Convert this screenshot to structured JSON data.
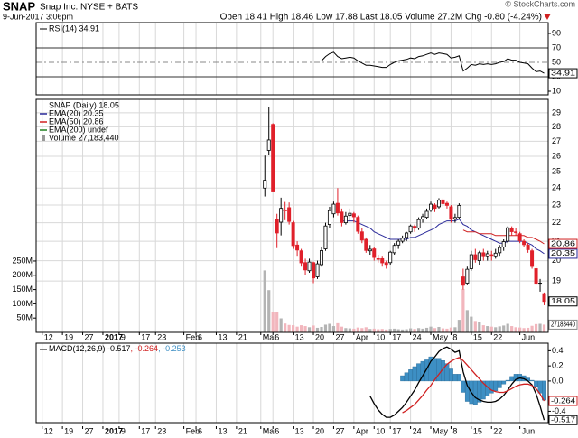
{
  "header": {
    "symbol": "SNAP",
    "name": "Snap Inc. NYSE + BATS",
    "timestamp": "9-Jun-2017 3:06pm",
    "quote": "Open 18.41  High 18.46  Low 17.88  Last 18.05  Volume 27.2M  Chg -0.80 (-4.24%)",
    "credit": "© StockCharts.com"
  },
  "chart_data": {
    "type": "candlestick",
    "xlim": [
      -56.5,
      70
    ],
    "xticks": [
      {
        "value": -55,
        "label": "12"
      },
      {
        "value": -50,
        "label": "19"
      },
      {
        "value": -45,
        "label": "27"
      },
      {
        "value": -40,
        "label": "2017"
      },
      {
        "value": -36,
        "label": "9"
      },
      {
        "value": -31,
        "label": "17"
      },
      {
        "value": -27,
        "label": "23"
      },
      {
        "value": -20,
        "label": "Feb"
      },
      {
        "value": -17,
        "label": "6"
      },
      {
        "value": -12,
        "label": "13"
      },
      {
        "value": -7,
        "label": "21"
      },
      {
        "value": -1,
        "label": "Mar"
      },
      {
        "value": 2,
        "label": "6"
      },
      {
        "value": 7,
        "label": "13"
      },
      {
        "value": 12,
        "label": "20"
      },
      {
        "value": 17,
        "label": "27"
      },
      {
        "value": 22,
        "label": "Apr"
      },
      {
        "value": 27,
        "label": "10"
      },
      {
        "value": 31,
        "label": "17"
      },
      {
        "value": 36,
        "label": "24"
      },
      {
        "value": 41,
        "label": "May"
      },
      {
        "value": 46,
        "label": "8"
      },
      {
        "value": 51,
        "label": "15"
      },
      {
        "value": 56,
        "label": "22"
      },
      {
        "value": 63,
        "label": "Jun"
      }
    ],
    "grid": true,
    "rsi": {
      "label": "RSI(14) 34.91",
      "last_label": "34.91",
      "color": "#000000",
      "ylim": [
        5,
        105
      ],
      "yticks": [
        10,
        30,
        50,
        70,
        90
      ],
      "values": [
        null,
        null,
        null,
        null,
        null,
        null,
        null,
        null,
        null,
        null,
        null,
        null,
        null,
        null,
        52,
        58,
        62,
        64,
        58,
        55,
        56,
        57,
        56,
        52,
        49,
        46,
        46,
        45,
        44,
        43,
        43,
        47,
        50,
        52,
        53,
        54,
        56,
        55,
        58,
        59,
        61,
        63,
        61,
        63,
        62,
        61,
        56,
        57,
        59,
        38,
        42,
        47,
        46,
        48,
        47,
        48,
        47,
        48,
        50,
        51,
        55,
        53,
        53,
        50,
        49,
        48,
        42,
        37,
        38,
        34.91
      ]
    },
    "price": {
      "legend": "SNAP (Daily) 18.05",
      "last_label": "18.05",
      "log": true,
      "ylim": [
        16.7,
        30
      ],
      "yticks": [
        19,
        20,
        21,
        22,
        23,
        24,
        25,
        26,
        27,
        28,
        29
      ],
      "up_color": "#000000",
      "down_color": "#e0202a",
      "candles": [
        [
          24,
          26.05,
          23.5,
          24.48
        ],
        [
          26.39,
          29.44,
          26.06,
          27.09
        ],
        [
          28.17,
          28.25,
          23.77,
          23.77
        ],
        [
          22.21,
          22.5,
          20.64,
          21.44
        ],
        [
          22.03,
          23.43,
          21.31,
          22.81
        ],
        [
          22.66,
          23.18,
          22.14,
          22.71
        ],
        [
          22.85,
          23.15,
          21.9,
          22.07
        ],
        [
          22,
          22.1,
          20.6,
          20.77
        ],
        [
          20.8,
          21,
          20.2,
          20.54
        ],
        [
          20.5,
          20.6,
          19.7,
          19.89
        ],
        [
          19.9,
          20.1,
          19.3,
          19.54
        ],
        [
          19.5,
          20.1,
          19.4,
          19.93
        ],
        [
          19.9,
          19.95,
          18.9,
          19.15
        ],
        [
          19.2,
          20,
          19.1,
          19.84
        ],
        [
          19.8,
          20.7,
          19.7,
          20.51
        ],
        [
          20.6,
          22,
          20.5,
          21.82
        ],
        [
          21.9,
          22.9,
          21.7,
          22.68
        ],
        [
          22.5,
          23.2,
          22.3,
          23.05
        ],
        [
          23.1,
          24,
          22.4,
          22.55
        ],
        [
          22.6,
          22.8,
          21.8,
          22.01
        ],
        [
          22,
          22.6,
          21.9,
          22.37
        ],
        [
          22.4,
          22.8,
          22.1,
          22.53
        ],
        [
          22.5,
          22.6,
          22,
          22.33
        ],
        [
          22.3,
          22.4,
          21.4,
          21.53
        ],
        [
          21.5,
          21.7,
          20.9,
          21.06
        ],
        [
          21.1,
          21.2,
          20.4,
          20.52
        ],
        [
          20.5,
          20.8,
          20.3,
          20.58
        ],
        [
          20.6,
          20.7,
          20,
          20.16
        ],
        [
          20.1,
          20.3,
          19.9,
          20.09
        ],
        [
          20.1,
          20.2,
          19.7,
          19.89
        ],
        [
          19.9,
          20,
          19.6,
          19.81
        ],
        [
          19.9,
          20.5,
          19.8,
          20.43
        ],
        [
          20.4,
          20.9,
          20.3,
          20.78
        ],
        [
          20.8,
          21.1,
          20.6,
          21
        ],
        [
          21,
          21.3,
          20.9,
          21.16
        ],
        [
          21.2,
          21.5,
          21,
          21.44
        ],
        [
          21.5,
          21.9,
          21.4,
          21.82
        ],
        [
          21.8,
          21.9,
          21.5,
          21.7
        ],
        [
          21.7,
          22.3,
          21.6,
          22.17
        ],
        [
          22.2,
          22.5,
          22,
          22.34
        ],
        [
          22.3,
          22.8,
          22.2,
          22.64
        ],
        [
          22.7,
          23.2,
          22.6,
          23.05
        ],
        [
          23,
          23.1,
          22.6,
          22.81
        ],
        [
          22.9,
          23.4,
          22.8,
          23.28
        ],
        [
          23.3,
          23.4,
          22.9,
          23.08
        ],
        [
          23.1,
          23.2,
          22.8,
          22.98
        ],
        [
          22.9,
          23,
          22,
          22.19
        ],
        [
          22.2,
          22.5,
          22,
          22.29
        ],
        [
          22.3,
          23.1,
          22.2,
          22.98
        ],
        [
          19.2,
          19.6,
          18.6,
          18.8
        ],
        [
          18.9,
          19.7,
          18.8,
          19.57
        ],
        [
          19.6,
          20.5,
          19.5,
          20.3
        ],
        [
          20.3,
          20.6,
          19.9,
          20.05
        ],
        [
          20,
          20.5,
          19.8,
          20.4
        ],
        [
          20.4,
          20.6,
          20,
          20.2
        ],
        [
          20.2,
          20.5,
          20,
          20.35
        ],
        [
          20.3,
          20.5,
          20,
          20.22
        ],
        [
          20.2,
          20.6,
          20.1,
          20.38
        ],
        [
          20.4,
          20.8,
          20.2,
          20.67
        ],
        [
          20.7,
          21.1,
          20.5,
          20.98
        ],
        [
          21,
          21.8,
          20.9,
          21.72
        ],
        [
          21.7,
          21.8,
          21.3,
          21.51
        ],
        [
          21.5,
          21.7,
          21.3,
          21.47
        ],
        [
          21.4,
          21.5,
          20.9,
          21.03
        ],
        [
          21,
          21.1,
          20.7,
          20.82
        ],
        [
          20.8,
          20.9,
          20.4,
          20.56
        ],
        [
          20.5,
          20.6,
          19.6,
          19.71
        ],
        [
          19.6,
          19.7,
          18.8,
          18.85
        ],
        [
          18.9,
          19.1,
          18.5,
          18.85
        ],
        [
          18.41,
          18.46,
          17.88,
          18.05
        ]
      ],
      "ema": [
        {
          "name": "EMA(20) 20.35",
          "color": "#2a2a9a",
          "last_label": "20.35",
          "values": [
            null,
            null,
            null,
            null,
            null,
            null,
            null,
            null,
            null,
            null,
            null,
            null,
            null,
            null,
            null,
            null,
            null,
            null,
            null,
            22.1,
            22.1,
            22.1,
            22.1,
            22,
            21.9,
            21.8,
            21.7,
            21.5,
            21.4,
            21.3,
            21.2,
            21.1,
            21.1,
            21.1,
            21.1,
            21.1,
            21.2,
            21.2,
            21.3,
            21.4,
            21.5,
            21.6,
            21.7,
            21.9,
            22,
            22.1,
            22.1,
            22.1,
            22.2,
            21.9,
            21.8,
            21.6,
            21.5,
            21.4,
            21.3,
            21.2,
            21.1,
            21,
            20.9,
            20.9,
            21,
            21,
            21,
            21,
            21,
            20.9,
            20.8,
            20.6,
            20.5,
            20.35
          ]
        },
        {
          "name": "EMA(50) 20.86",
          "color": "#d02020",
          "last_label": "20.86",
          "values": [
            null,
            null,
            null,
            null,
            null,
            null,
            null,
            null,
            null,
            null,
            null,
            null,
            null,
            null,
            null,
            null,
            null,
            null,
            null,
            null,
            null,
            null,
            null,
            null,
            null,
            null,
            null,
            null,
            null,
            null,
            null,
            null,
            null,
            null,
            null,
            null,
            null,
            null,
            null,
            null,
            null,
            null,
            null,
            null,
            null,
            null,
            null,
            null,
            null,
            21.6,
            21.5,
            21.5,
            21.5,
            21.4,
            21.4,
            21.4,
            21.4,
            21.3,
            21.3,
            21.3,
            21.3,
            21.3,
            21.3,
            21.3,
            21.3,
            21.2,
            21.2,
            21.1,
            21,
            20.86
          ]
        },
        {
          "name": "EMA(200) undef",
          "color": "#208020"
        }
      ]
    },
    "volume": {
      "legend": "Volume 27,183,440",
      "last_label": "27183440",
      "ylim": [
        0,
        816
      ],
      "up_color": "#b4b4b4",
      "down_color": "#f2b6bd",
      "yticks": [
        {
          "value": 50,
          "label": "50M"
        },
        {
          "value": 100,
          "label": "100M"
        },
        {
          "value": 150,
          "label": "150M"
        },
        {
          "value": 200,
          "label": "200M"
        },
        {
          "value": 250,
          "label": "250M"
        }
      ],
      "values": [
        217,
        148,
        72,
        71,
        49,
        31,
        26,
        25,
        20,
        25,
        22,
        18,
        24,
        16,
        19,
        27,
        30,
        22,
        32,
        20,
        15,
        14,
        13,
        17,
        15,
        18,
        12,
        13,
        11,
        12,
        10,
        12,
        13,
        11,
        10,
        11,
        14,
        12,
        15,
        13,
        16,
        20,
        15,
        19,
        14,
        13,
        17,
        18,
        44,
        152,
        78,
        55,
        40,
        35,
        25,
        22,
        20,
        18,
        21,
        24,
        30,
        22,
        18,
        17,
        15,
        16,
        23,
        29,
        30,
        27.18344
      ]
    },
    "macd": {
      "ylim": [
        -0.55,
        0.5
      ],
      "yticks": [
        -0.4,
        {
          "value": 0,
          "label": "0.0"
        },
        0.2,
        0.4
      ],
      "series": [
        {
          "label": "MACD(12,26,9) -0.517",
          "color": "#000000",
          "kind": "line",
          "last_label": "-0.517",
          "values": [
            null,
            null,
            null,
            null,
            null,
            null,
            null,
            null,
            null,
            null,
            null,
            null,
            null,
            null,
            null,
            null,
            null,
            null,
            null,
            null,
            null,
            null,
            null,
            null,
            null,
            null,
            -0.2,
            -0.3,
            -0.38,
            -0.44,
            -0.48,
            -0.48,
            -0.45,
            -0.4,
            -0.35,
            -0.28,
            -0.2,
            -0.12,
            -0.02,
            0.07,
            0.16,
            0.26,
            0.32,
            0.39,
            0.43,
            0.45,
            0.42,
            0.38,
            0.4,
            0.12,
            -0.06,
            -0.15,
            -0.22,
            -0.25,
            -0.27,
            -0.28,
            -0.28,
            -0.27,
            -0.24,
            -0.19,
            -0.12,
            -0.04,
            0.02,
            0.04,
            0.03,
            0,
            -0.05,
            -0.17,
            -0.33,
            -0.517
          ]
        },
        {
          "label": ", -0.264",
          "color": "#d02020",
          "kind": "line",
          "last_label": "-0.264",
          "values": [
            null,
            null,
            null,
            null,
            null,
            null,
            null,
            null,
            null,
            null,
            null,
            null,
            null,
            null,
            null,
            null,
            null,
            null,
            null,
            null,
            null,
            null,
            null,
            null,
            null,
            null,
            null,
            null,
            null,
            null,
            null,
            null,
            null,
            null,
            -0.42,
            -0.39,
            -0.35,
            -0.31,
            -0.25,
            -0.19,
            -0.12,
            -0.06,
            0.02,
            0.09,
            0.16,
            0.22,
            0.26,
            0.29,
            0.31,
            0.27,
            0.21,
            0.15,
            0.09,
            0.03,
            -0.03,
            -0.08,
            -0.12,
            -0.14,
            -0.15,
            -0.15,
            -0.13,
            -0.1,
            -0.07,
            -0.05,
            -0.04,
            -0.04,
            -0.06,
            -0.1,
            -0.17,
            -0.264
          ]
        },
        {
          "label": ", -0.253",
          "color": "#3d8fc4",
          "kind": "bar",
          "values": [
            null,
            null,
            null,
            null,
            null,
            null,
            null,
            null,
            null,
            null,
            null,
            null,
            null,
            null,
            null,
            null,
            null,
            null,
            null,
            null,
            null,
            null,
            null,
            null,
            null,
            null,
            null,
            null,
            null,
            null,
            null,
            null,
            null,
            null,
            0.07,
            0.11,
            0.15,
            0.19,
            0.23,
            0.26,
            0.28,
            0.32,
            0.3,
            0.3,
            0.27,
            0.23,
            0.16,
            0.09,
            0.09,
            -0.15,
            -0.27,
            -0.3,
            -0.31,
            -0.28,
            -0.24,
            -0.2,
            -0.16,
            -0.13,
            -0.09,
            -0.04,
            0.01,
            0.06,
            0.09,
            0.09,
            0.07,
            0.04,
            0.01,
            -0.07,
            -0.16,
            -0.253
          ]
        }
      ]
    }
  }
}
